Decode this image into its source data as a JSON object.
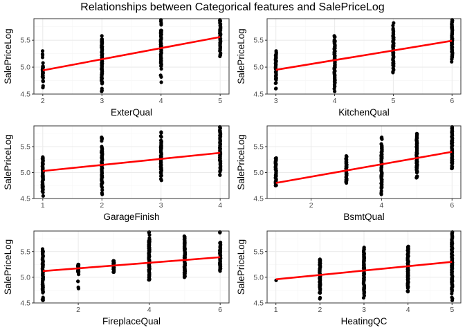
{
  "title": "Relationships between Categorical features and SalePriceLog",
  "colors": {
    "points": "#000000",
    "fit_line": "#ff0000",
    "panel_border": "#333333",
    "grid_major": "#ebebeb",
    "grid_minor": "#f5f5f5",
    "tick_label": "#4d4d4d"
  },
  "chart_data": [
    {
      "type": "scatter",
      "xlabel": "ExterQual",
      "ylabel": "SalePriceLog",
      "xlim": [
        1.85,
        5.15
      ],
      "ylim": [
        4.5,
        5.9
      ],
      "xticks": [
        2,
        3,
        4,
        5
      ],
      "yticks": [
        4.5,
        5.0,
        5.5
      ],
      "ytick_labels": [
        "4.5",
        "5.0",
        "5.5"
      ],
      "grid": true,
      "points": [
        {
          "x": 2,
          "ymin": 4.62,
          "ymax": 5.3,
          "ydense": [
            4.8,
            5.02
          ]
        },
        {
          "x": 3,
          "ymin": 4.55,
          "ymax": 5.58,
          "ydense": [
            4.72,
            5.48
          ]
        },
        {
          "x": 4,
          "ymin": 4.72,
          "ymax": 5.88,
          "ydense": [
            5.02,
            5.68
          ]
        },
        {
          "x": 5,
          "ymin": 5.2,
          "ymax": 5.88,
          "ydense": [
            5.3,
            5.8
          ]
        }
      ],
      "fit_line": {
        "x": [
          2,
          5
        ],
        "y": [
          4.94,
          5.56
        ]
      }
    },
    {
      "type": "scatter",
      "xlabel": "KitchenQual",
      "ylabel": "SalePriceLog",
      "xlim": [
        2.85,
        6.15
      ],
      "ylim": [
        4.5,
        5.9
      ],
      "xticks": [
        3,
        4,
        5,
        6
      ],
      "yticks": [
        4.5,
        5.0,
        5.5
      ],
      "ytick_labels": [
        "4.5",
        "5.0",
        "5.5"
      ],
      "grid": true,
      "points": [
        {
          "x": 3,
          "ymin": 4.6,
          "ymax": 5.3,
          "ydense": [
            4.78,
            5.2
          ]
        },
        {
          "x": 4,
          "ymin": 4.55,
          "ymax": 5.58,
          "ydense": [
            4.7,
            5.48
          ]
        },
        {
          "x": 5,
          "ymin": 4.9,
          "ymax": 5.82,
          "ydense": [
            5.02,
            5.68
          ]
        },
        {
          "x": 6,
          "ymin": 5.1,
          "ymax": 5.88,
          "ydense": [
            5.2,
            5.8
          ]
        }
      ],
      "fit_line": {
        "x": [
          3,
          6
        ],
        "y": [
          4.95,
          5.49
        ]
      }
    },
    {
      "type": "scatter",
      "xlabel": "GarageFinish",
      "ylabel": "SalePriceLog",
      "xlim": [
        0.85,
        4.15
      ],
      "ylim": [
        4.5,
        5.9
      ],
      "xticks": [
        1,
        2,
        3,
        4
      ],
      "yticks": [
        4.5,
        5.0,
        5.5
      ],
      "ytick_labels": [
        "4.5",
        "5.0",
        "5.5"
      ],
      "grid": true,
      "points": [
        {
          "x": 1,
          "ymin": 4.55,
          "ymax": 5.3,
          "ydense": [
            4.7,
            5.25
          ]
        },
        {
          "x": 2,
          "ymin": 4.58,
          "ymax": 5.68,
          "ydense": [
            4.78,
            5.5
          ]
        },
        {
          "x": 3,
          "ymin": 4.85,
          "ymax": 5.78,
          "ydense": [
            4.98,
            5.62
          ]
        },
        {
          "x": 4,
          "ymin": 4.95,
          "ymax": 5.88,
          "ydense": [
            5.05,
            5.8
          ]
        }
      ],
      "fit_line": {
        "x": [
          1,
          4
        ],
        "y": [
          5.03,
          5.38
        ]
      }
    },
    {
      "type": "scatter",
      "xlabel": "BsmtQual",
      "ylabel": "SalePriceLog",
      "xlim": [
        0.75,
        6.25
      ],
      "ylim": [
        4.5,
        5.9
      ],
      "xticks": [
        2,
        4,
        6
      ],
      "yticks": [
        4.5,
        5.0,
        5.5
      ],
      "ytick_labels": [
        "4.5",
        "5.0",
        "5.5"
      ],
      "grid": true,
      "points": [
        {
          "x": 1,
          "ymin": 4.75,
          "ymax": 5.28,
          "ydense": [
            4.82,
            5.22
          ]
        },
        {
          "x": 3,
          "ymin": 4.8,
          "ymax": 5.32,
          "ydense": [
            4.88,
            5.25
          ]
        },
        {
          "x": 4,
          "ymin": 4.58,
          "ymax": 5.68,
          "ydense": [
            4.72,
            5.52
          ]
        },
        {
          "x": 5,
          "ymin": 4.9,
          "ymax": 5.75,
          "ydense": [
            5.0,
            5.68
          ]
        },
        {
          "x": 6,
          "ymin": 5.08,
          "ymax": 5.88,
          "ydense": [
            5.18,
            5.82
          ]
        }
      ],
      "fit_line": {
        "x": [
          1,
          6
        ],
        "y": [
          4.8,
          5.4
        ]
      }
    },
    {
      "type": "scatter",
      "xlabel": "FireplaceQual",
      "ylabel": "SalePriceLog",
      "xlim": [
        0.75,
        6.25
      ],
      "ylim": [
        4.5,
        5.9
      ],
      "xticks": [
        2,
        4,
        6
      ],
      "yticks": [
        4.5,
        5.0,
        5.5
      ],
      "ytick_labels": [
        "4.5",
        "5.0",
        "5.5"
      ],
      "grid": true,
      "points": [
        {
          "x": 1,
          "ymin": 4.55,
          "ymax": 5.55,
          "ydense": [
            4.7,
            5.5
          ]
        },
        {
          "x": 2,
          "ymin": 4.78,
          "ymax": 5.25,
          "ydense": [
            5.1,
            5.22
          ]
        },
        {
          "x": 3,
          "ymin": 5.1,
          "ymax": 5.32,
          "ydense": [
            5.15,
            5.3
          ]
        },
        {
          "x": 4,
          "ymin": 4.95,
          "ymax": 5.88,
          "ydense": [
            5.0,
            5.72
          ]
        },
        {
          "x": 5,
          "ymin": 5.0,
          "ymax": 5.8,
          "ydense": [
            5.02,
            5.78
          ]
        },
        {
          "x": 6,
          "ymin": 5.12,
          "ymax": 5.88,
          "ydense": [
            5.2,
            5.65
          ]
        }
      ],
      "fit_line": {
        "x": [
          1,
          6
        ],
        "y": [
          5.12,
          5.39
        ]
      }
    },
    {
      "type": "scatter",
      "xlabel": "HeatingQC",
      "ylabel": "SalePriceLog",
      "xlim": [
        0.8,
        5.2
      ],
      "ylim": [
        4.5,
        5.9
      ],
      "xticks": [
        1,
        2,
        3,
        4,
        5
      ],
      "yticks": [
        4.5,
        5.0,
        5.5
      ],
      "ytick_labels": [
        "4.5",
        "5.0",
        "5.5"
      ],
      "grid": true,
      "points": [
        {
          "x": 1,
          "ymin": 4.94,
          "ymax": 4.94,
          "ydense": [
            4.94,
            4.94
          ]
        },
        {
          "x": 2,
          "ymin": 4.58,
          "ymax": 5.35,
          "ydense": [
            4.75,
            5.3
          ]
        },
        {
          "x": 3,
          "ymin": 4.6,
          "ymax": 5.58,
          "ydense": [
            4.72,
            5.52
          ]
        },
        {
          "x": 4,
          "ymin": 4.72,
          "ymax": 5.6,
          "ydense": [
            4.8,
            5.58
          ]
        },
        {
          "x": 5,
          "ymin": 4.55,
          "ymax": 5.88,
          "ydense": [
            4.75,
            5.8
          ]
        }
      ],
      "fit_line": {
        "x": [
          1,
          5
        ],
        "y": [
          4.96,
          5.3
        ]
      }
    }
  ]
}
